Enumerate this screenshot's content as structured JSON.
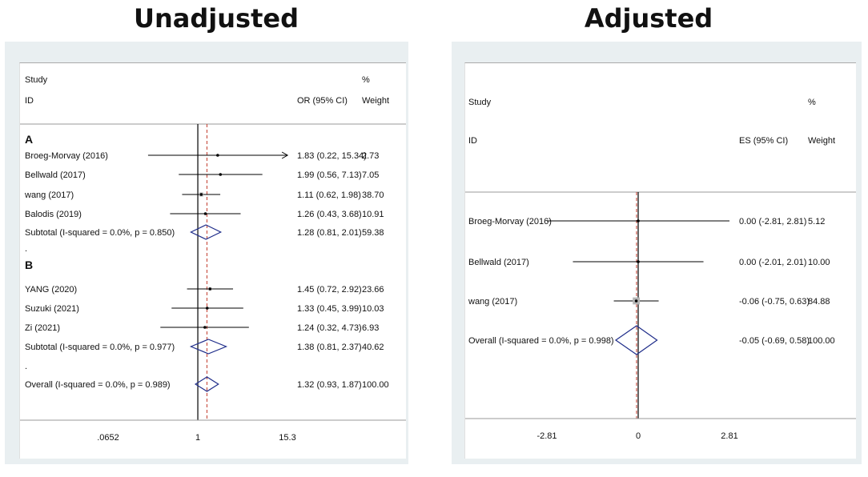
{
  "titles": {
    "left": "Unadjusted",
    "right": "Adjusted"
  },
  "chart_data": [
    {
      "type": "forest",
      "title": "Unadjusted",
      "scale": "log",
      "null_value": 1,
      "pooled_line_value": 1.32,
      "ticks": [
        ".0652",
        "1",
        "15.3"
      ],
      "tick_values": [
        0.0652,
        1,
        15.3
      ],
      "header": {
        "study": "Study",
        "id": "ID",
        "effect": "OR (95% CI)",
        "pct": "%",
        "weight": "Weight"
      },
      "rows": [
        {
          "kind": "group",
          "label": "A"
        },
        {
          "kind": "study",
          "label": "Broeg-Morvay (2016)",
          "est": 1.83,
          "lo": 0.22,
          "hi": 15.34,
          "arrow": true,
          "ci_text": "1.83 (0.22, 15.34)",
          "weight": "2.73"
        },
        {
          "kind": "study",
          "label": "Bellwald (2017)",
          "est": 1.99,
          "lo": 0.56,
          "hi": 7.13,
          "ci_text": "1.99 (0.56, 7.13)",
          "weight": "7.05"
        },
        {
          "kind": "study",
          "label": "wang (2017)",
          "est": 1.11,
          "lo": 0.62,
          "hi": 1.98,
          "ci_text": "1.11 (0.62, 1.98)",
          "weight": "38.70"
        },
        {
          "kind": "study",
          "label": "Balodis (2019)",
          "est": 1.26,
          "lo": 0.43,
          "hi": 3.68,
          "ci_text": "1.26 (0.43, 3.68)",
          "weight": "10.91"
        },
        {
          "kind": "summary",
          "label": "Subtotal  (I-squared = 0.0%, p = 0.850)",
          "est": 1.28,
          "lo": 0.81,
          "hi": 2.01,
          "ci_text": "1.28 (0.81, 2.01)",
          "weight": "59.38"
        },
        {
          "kind": "dot",
          "label": "."
        },
        {
          "kind": "group",
          "label": "B"
        },
        {
          "kind": "study",
          "label": "YANG (2020)",
          "est": 1.45,
          "lo": 0.72,
          "hi": 2.92,
          "ci_text": "1.45 (0.72, 2.92)",
          "weight": "23.66"
        },
        {
          "kind": "study",
          "label": "Suzuki (2021)",
          "est": 1.33,
          "lo": 0.45,
          "hi": 3.99,
          "ci_text": "1.33 (0.45, 3.99)",
          "weight": "10.03"
        },
        {
          "kind": "study",
          "label": "Zi (2021)",
          "est": 1.24,
          "lo": 0.32,
          "hi": 4.73,
          "ci_text": "1.24 (0.32, 4.73)",
          "weight": "6.93"
        },
        {
          "kind": "summary",
          "label": "Subtotal  (I-squared = 0.0%, p = 0.977)",
          "est": 1.38,
          "lo": 0.81,
          "hi": 2.37,
          "ci_text": "1.38 (0.81, 2.37)",
          "weight": "40.62"
        },
        {
          "kind": "dot",
          "label": "."
        },
        {
          "kind": "summary",
          "label": "Overall  (I-squared = 0.0%, p = 0.989)",
          "est": 1.32,
          "lo": 0.93,
          "hi": 1.87,
          "ci_text": "1.32 (0.93, 1.87)",
          "weight": "100.00"
        }
      ]
    },
    {
      "type": "forest",
      "title": "Adjusted",
      "scale": "linear",
      "null_value": 0,
      "pooled_line_value": -0.05,
      "ticks": [
        "-2.81",
        "0",
        "2.81"
      ],
      "tick_values": [
        -2.81,
        0,
        2.81
      ],
      "header": {
        "study": "Study",
        "id": "ID",
        "effect": "ES (95% CI)",
        "pct": "%",
        "weight": "Weight"
      },
      "rows": [
        {
          "kind": "study",
          "label": "Broeg-Morvay (2016)",
          "est": 0.0,
          "lo": -2.81,
          "hi": 2.81,
          "ci_text": "0.00 (-2.81, 2.81)",
          "weight": "5.12"
        },
        {
          "kind": "study",
          "label": "Bellwald (2017)",
          "est": 0.0,
          "lo": -2.01,
          "hi": 2.01,
          "ci_text": "0.00 (-2.01, 2.01)",
          "weight": "10.00"
        },
        {
          "kind": "study",
          "label": "wang (2017)",
          "est": -0.06,
          "lo": -0.75,
          "hi": 0.63,
          "ci_text": "-0.06 (-0.75, 0.63)",
          "weight": "84.88"
        },
        {
          "kind": "summary",
          "label": "Overall  (I-squared = 0.0%, p = 0.998)",
          "est": -0.05,
          "lo": -0.69,
          "hi": 0.58,
          "ci_text": "-0.05 (-0.69, 0.58)",
          "weight": "100.00"
        }
      ]
    }
  ]
}
